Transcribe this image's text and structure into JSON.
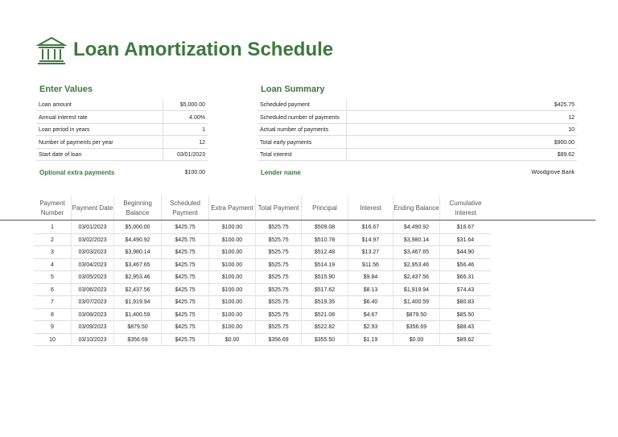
{
  "header": {
    "title": "Loan Amortization Schedule"
  },
  "enter_values": {
    "heading": "Enter Values",
    "rows": [
      {
        "label": "Loan amount",
        "value": "$5,000.00"
      },
      {
        "label": "Annual interest rate",
        "value": "4.00%"
      },
      {
        "label": "Loan period in years",
        "value": "1"
      },
      {
        "label": "Number of payments per year",
        "value": "12"
      },
      {
        "label": "Start date of loan",
        "value": "03/01/2023"
      }
    ],
    "extra": {
      "label": "Optional extra payments",
      "value": "$100.00"
    }
  },
  "loan_summary": {
    "heading": "Loan Summary",
    "rows": [
      {
        "label": "Scheduled payment",
        "value": "$425.75"
      },
      {
        "label": "Scheduled number of payments",
        "value": "12"
      },
      {
        "label": "Actual number of payments",
        "value": "10"
      },
      {
        "label": "Total early payments",
        "value": "$900.00"
      },
      {
        "label": "Total interest",
        "value": "$89.62"
      }
    ],
    "lender": {
      "label": "Lender name",
      "value": "Woodgrove Bank"
    }
  },
  "schedule": {
    "headers": [
      "Payment Number",
      "Payment Date",
      "Beginning Balance",
      "Scheduled Payment",
      "Extra Payment",
      "Total Payment",
      "Principal",
      "Interest",
      "Ending Balance",
      "Cumulative Interest"
    ],
    "rows": [
      [
        "1",
        "03/01/2023",
        "$5,000.00",
        "$425.75",
        "$100.00",
        "$525.75",
        "$509.08",
        "$16.67",
        "$4,490.92",
        "$16.67"
      ],
      [
        "2",
        "03/02/2023",
        "$4,490.92",
        "$425.75",
        "$100.00",
        "$525.75",
        "$510.78",
        "$14.97",
        "$3,980.14",
        "$31.64"
      ],
      [
        "3",
        "03/03/2023",
        "$3,980.14",
        "$425.75",
        "$100.00",
        "$525.75",
        "$512.48",
        "$13.27",
        "$3,467.65",
        "$44.90"
      ],
      [
        "4",
        "03/04/2023",
        "$3,467.65",
        "$425.75",
        "$100.00",
        "$525.75",
        "$514.19",
        "$11.56",
        "$2,953.46",
        "$56.46"
      ],
      [
        "5",
        "03/05/2023",
        "$2,953.46",
        "$425.75",
        "$100.00",
        "$525.75",
        "$515.90",
        "$9.84",
        "$2,437.56",
        "$66.31"
      ],
      [
        "6",
        "03/06/2023",
        "$2,437.56",
        "$425.75",
        "$100.00",
        "$525.75",
        "$517.62",
        "$8.13",
        "$1,919.94",
        "$74.43"
      ],
      [
        "7",
        "03/07/2023",
        "$1,919.94",
        "$425.75",
        "$100.00",
        "$525.75",
        "$519.35",
        "$6.40",
        "$1,400.59",
        "$80.83"
      ],
      [
        "8",
        "03/08/2023",
        "$1,400.59",
        "$425.75",
        "$100.00",
        "$525.75",
        "$521.08",
        "$4.67",
        "$879.50",
        "$85.50"
      ],
      [
        "9",
        "03/09/2023",
        "$879.50",
        "$425.75",
        "$100.00",
        "$525.75",
        "$522.82",
        "$2.93",
        "$356.69",
        "$88.43"
      ],
      [
        "10",
        "03/10/2023",
        "$356.69",
        "$425.75",
        "$0.00",
        "$356.69",
        "$355.50",
        "$1.19",
        "$0.00",
        "$89.62"
      ]
    ]
  }
}
